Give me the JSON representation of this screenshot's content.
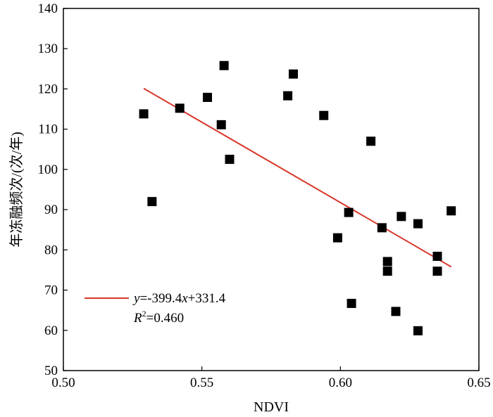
{
  "chart_data": {
    "type": "scatter",
    "xlabel": "NDVI",
    "ylabel": "年冻融频次/(次/年)",
    "xlim": [
      0.5,
      0.65
    ],
    "ylim": [
      50,
      140
    ],
    "x_ticks": [
      "0.50",
      "0.55",
      "0.60",
      "0.65"
    ],
    "y_ticks": [
      "50",
      "60",
      "70",
      "80",
      "90",
      "100",
      "110",
      "120",
      "130",
      "140"
    ],
    "grid": false,
    "legend_position": "bottom-left",
    "colors": {
      "points": "#000000",
      "fit_line": "#d9372b"
    },
    "series": [
      {
        "points": [
          {
            "x": 0.529,
            "y": 113.8
          },
          {
            "x": 0.532,
            "y": 92.0
          },
          {
            "x": 0.542,
            "y": 115.2
          },
          {
            "x": 0.552,
            "y": 117.9
          },
          {
            "x": 0.557,
            "y": 111.1
          },
          {
            "x": 0.558,
            "y": 125.8
          },
          {
            "x": 0.56,
            "y": 102.5
          },
          {
            "x": 0.581,
            "y": 118.3
          },
          {
            "x": 0.583,
            "y": 123.7
          },
          {
            "x": 0.594,
            "y": 113.4
          },
          {
            "x": 0.599,
            "y": 83.0
          },
          {
            "x": 0.603,
            "y": 89.3
          },
          {
            "x": 0.604,
            "y": 66.7
          },
          {
            "x": 0.611,
            "y": 107.0
          },
          {
            "x": 0.615,
            "y": 85.5
          },
          {
            "x": 0.617,
            "y": 77.1
          },
          {
            "x": 0.617,
            "y": 74.7
          },
          {
            "x": 0.62,
            "y": 64.7
          },
          {
            "x": 0.622,
            "y": 88.3
          },
          {
            "x": 0.628,
            "y": 86.5
          },
          {
            "x": 0.628,
            "y": 59.9
          },
          {
            "x": 0.635,
            "y": 78.4
          },
          {
            "x": 0.635,
            "y": 74.7
          },
          {
            "x": 0.64,
            "y": 89.7
          }
        ]
      }
    ],
    "fit": {
      "slope": -399.4,
      "intercept": 331.4,
      "x_range": [
        0.529,
        0.64
      ],
      "equation_y": "y",
      "equation_rest": "=-399.4",
      "equation_x": "x",
      "equation_tail": "+331.4",
      "r2_R": "R",
      "r2_sup": "2",
      "r2_value": "=0.460"
    }
  }
}
